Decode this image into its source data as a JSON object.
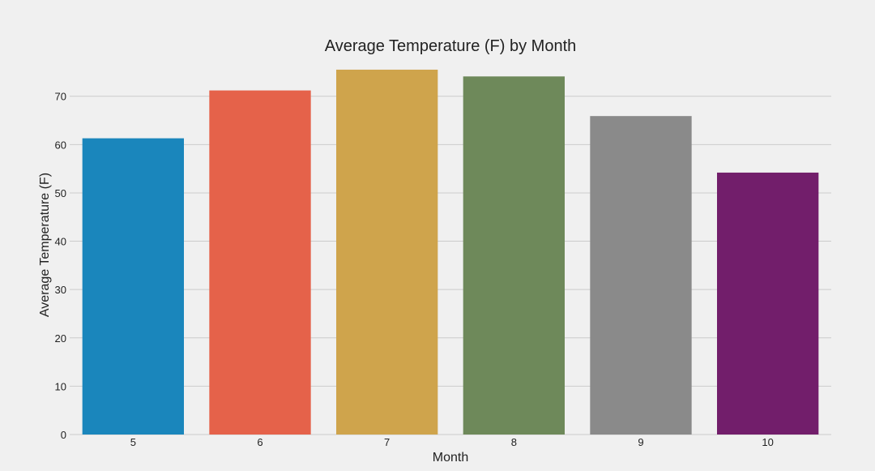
{
  "chart_data": {
    "type": "bar",
    "title": "Average Temperature (F) by Month",
    "xlabel": "Month",
    "ylabel": "Average Temperature (F)",
    "categories": [
      "5",
      "6",
      "7",
      "8",
      "9",
      "10"
    ],
    "values": [
      61.3,
      71.2,
      75.5,
      74.1,
      65.9,
      54.2
    ],
    "colors": [
      "#1a86bc",
      "#e5624a",
      "#cfa44c",
      "#6e895a",
      "#8a8a8a",
      "#721e6b"
    ],
    "ylim": [
      0,
      77
    ],
    "yticks": [
      0,
      10,
      20,
      30,
      40,
      50,
      60,
      70
    ],
    "grid": "horizontal",
    "legend": "none",
    "background": "#f0f0f0"
  }
}
